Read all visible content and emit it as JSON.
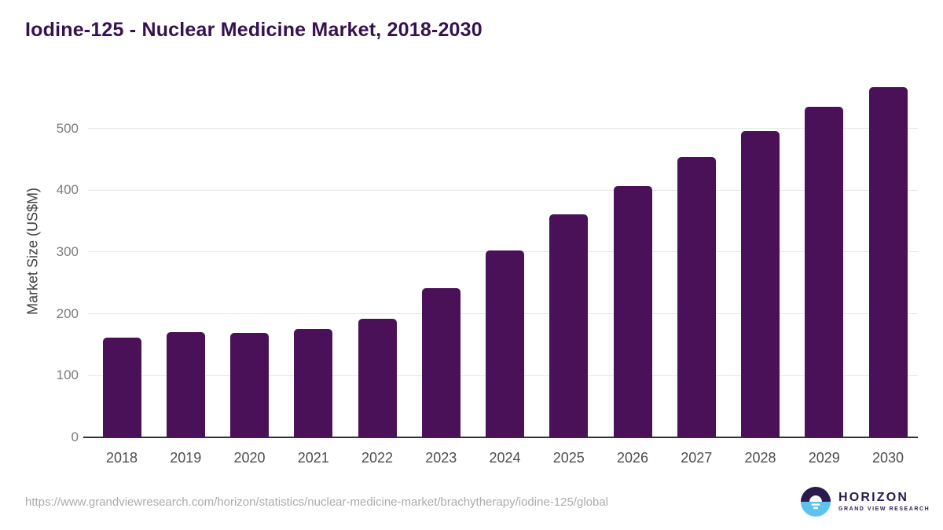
{
  "chart_data": {
    "type": "bar",
    "title": "Iodine-125 - Nuclear Medicine Market, 2018-2030",
    "xlabel": "",
    "ylabel": "Market Size (US$M)",
    "categories": [
      "2018",
      "2019",
      "2020",
      "2021",
      "2022",
      "2023",
      "2024",
      "2025",
      "2026",
      "2027",
      "2028",
      "2029",
      "2030"
    ],
    "values": [
      161,
      170,
      169,
      175,
      192,
      242,
      303,
      361,
      407,
      453,
      495,
      535,
      567
    ],
    "ylim": [
      0,
      600
    ],
    "yticks": [
      0,
      100,
      200,
      300,
      400,
      500
    ],
    "grid": "horizontal",
    "legend": false,
    "bar_color": "#4a1158"
  },
  "footer": {
    "source_url": "https://www.grandviewresearch.com/horizon/statistics/nuclear-medicine-market/brachytherapy/iodine-125/global",
    "logo": {
      "name": "HORIZON",
      "subtitle": "GRAND VIEW RESEARCH"
    }
  },
  "colors": {
    "title": "#351150",
    "bar": "#4a1158",
    "gridline": "#e8e8e8",
    "axis_line": "#333333",
    "y_tick_text": "#7d7d7d",
    "x_tick_text": "#4d4d4d",
    "url_text": "#ababab",
    "logo_dark": "#2b1a4e",
    "logo_blue": "#5ec2ee"
  }
}
